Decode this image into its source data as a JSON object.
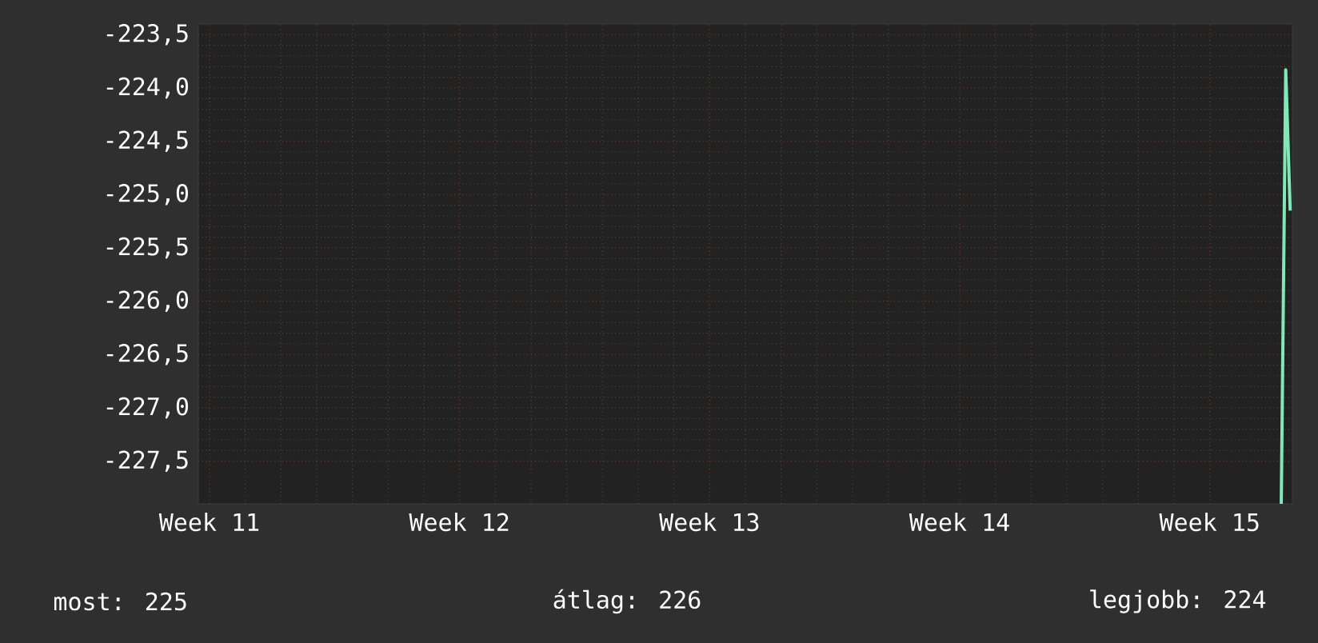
{
  "chart_data": {
    "type": "line",
    "categories": [
      null,
      null,
      "Week 11",
      null,
      null,
      null,
      null,
      null,
      null,
      null,
      null,
      null,
      null,
      null,
      null,
      null,
      null,
      null,
      null,
      null,
      null,
      null,
      null,
      null,
      null,
      null,
      null,
      null,
      null,
      null,
      null,
      null,
      null,
      null,
      null,
      null,
      null,
      null,
      null,
      null,
      null,
      null,
      null,
      null,
      null,
      null,
      null,
      null,
      null,
      null,
      null,
      null,
      null,
      null,
      null,
      null,
      null,
      null,
      "Week 12",
      null,
      null,
      null,
      null,
      null,
      null,
      null,
      null,
      null,
      null,
      null,
      null,
      null,
      null,
      null,
      null,
      null,
      null,
      null,
      null,
      null,
      null,
      null,
      null,
      null,
      null,
      null,
      null,
      null,
      null,
      null,
      null,
      null,
      null,
      null,
      null,
      null,
      null,
      null,
      null,
      null,
      null,
      null,
      null,
      null,
      null,
      null,
      null,
      null,
      null,
      null,
      null,
      null,
      null,
      null,
      "Week 13",
      null,
      null,
      null,
      null,
      null,
      null,
      null,
      null,
      null,
      null,
      null,
      null,
      null,
      null,
      null,
      null,
      null,
      null,
      null,
      null,
      null,
      null,
      null,
      null,
      null,
      null,
      null,
      null,
      null,
      null,
      null,
      null,
      null,
      null,
      null,
      null,
      null,
      null,
      null,
      null,
      null,
      null,
      null,
      null,
      null,
      null,
      null,
      null,
      null,
      null,
      null,
      null,
      null,
      null,
      null,
      "Week 14",
      null,
      null,
      null,
      null,
      null,
      null,
      null,
      null,
      null,
      null,
      null,
      null,
      null,
      null,
      null,
      null,
      null,
      null,
      null,
      null,
      null,
      null,
      null,
      null,
      null,
      null,
      null,
      null,
      null,
      null,
      null,
      null,
      null,
      null,
      null,
      null,
      null,
      null,
      null,
      null,
      null,
      null,
      null,
      null,
      null,
      null,
      null,
      null,
      null,
      null,
      null,
      null,
      null,
      null,
      null,
      "Week 15",
      null,
      null,
      null,
      null,
      null,
      null,
      null,
      null,
      null,
      null,
      null,
      null,
      null,
      null,
      null,
      null,
      null,
      null
    ],
    "series": [
      {
        "color": "#7fe8b4",
        "values": [
          null,
          null,
          null,
          null,
          null,
          null,
          null,
          null,
          null,
          null,
          null,
          null,
          null,
          null,
          null,
          null,
          null,
          null,
          null,
          null,
          null,
          null,
          null,
          null,
          null,
          null,
          null,
          null,
          null,
          null,
          null,
          null,
          null,
          null,
          null,
          null,
          null,
          null,
          null,
          null,
          null,
          null,
          null,
          null,
          null,
          null,
          null,
          null,
          null,
          null,
          null,
          null,
          null,
          null,
          null,
          null,
          null,
          null,
          null,
          null,
          null,
          null,
          null,
          null,
          null,
          null,
          null,
          null,
          null,
          null,
          null,
          null,
          null,
          null,
          null,
          null,
          null,
          null,
          null,
          null,
          null,
          null,
          null,
          null,
          null,
          null,
          null,
          null,
          null,
          null,
          null,
          null,
          null,
          null,
          null,
          null,
          null,
          null,
          null,
          null,
          null,
          null,
          null,
          null,
          null,
          null,
          null,
          null,
          null,
          null,
          null,
          null,
          null,
          null,
          null,
          null,
          null,
          null,
          null,
          null,
          null,
          null,
          null,
          null,
          null,
          null,
          null,
          null,
          null,
          null,
          null,
          null,
          null,
          null,
          null,
          null,
          null,
          null,
          null,
          null,
          null,
          null,
          null,
          null,
          null,
          null,
          null,
          null,
          null,
          null,
          null,
          null,
          null,
          null,
          null,
          null,
          null,
          null,
          null,
          null,
          null,
          null,
          null,
          null,
          null,
          null,
          null,
          null,
          null,
          null,
          null,
          null,
          null,
          null,
          null,
          null,
          null,
          null,
          null,
          null,
          null,
          null,
          null,
          null,
          null,
          null,
          null,
          null,
          null,
          null,
          null,
          null,
          null,
          null,
          null,
          null,
          null,
          null,
          null,
          null,
          null,
          null,
          null,
          null,
          null,
          null,
          null,
          null,
          null,
          null,
          null,
          null,
          null,
          null,
          null,
          null,
          null,
          null,
          null,
          null,
          null,
          null,
          null,
          null,
          null,
          null,
          null,
          null,
          null,
          null,
          null,
          null,
          null,
          null,
          null,
          null,
          null,
          null,
          null,
          null,
          null,
          null,
          -227.9,
          -223.83,
          -225.15
        ]
      }
    ],
    "ylim": [
      -227.9,
      -223.4
    ],
    "yticks": [
      {
        "value": -227.5,
        "label": "-227,5"
      },
      {
        "value": -227.0,
        "label": "-227,0"
      },
      {
        "value": -226.5,
        "label": "-226,5"
      },
      {
        "value": -226.0,
        "label": "-226,0"
      },
      {
        "value": -225.5,
        "label": "-225,5"
      },
      {
        "value": -225.0,
        "label": "-225,0"
      },
      {
        "value": -224.5,
        "label": "-224,5"
      },
      {
        "value": -224.0,
        "label": "-224,0"
      },
      {
        "value": -223.5,
        "label": "-223,5"
      }
    ],
    "grid": true,
    "annotations": [
      "most: 225",
      "átlag: 226",
      "legjobb: 224"
    ]
  }
}
